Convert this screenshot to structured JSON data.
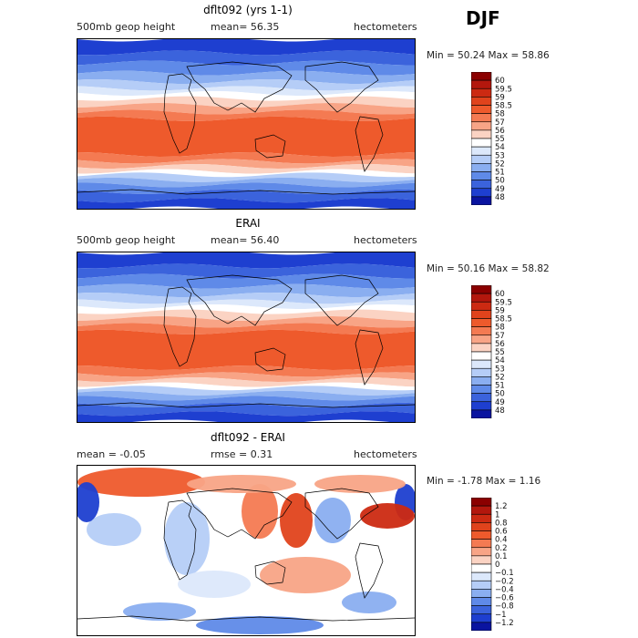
{
  "season": "DJF",
  "panels": [
    {
      "title": "dflt092 (yrs 1-1)",
      "left_label": "500mb geop height",
      "mid_label": "mean=  56.35",
      "right_label": "hectometers",
      "minmax": "Min =  50.24 Max =  58.86",
      "field": "height",
      "colorbar": {
        "labels": [
          "60",
          "59.5",
          "59",
          "58.5",
          "58",
          "57",
          "56",
          "55",
          "54",
          "53",
          "52",
          "51",
          "50",
          "49",
          "48"
        ],
        "colors": [
          "#8b0000",
          "#b3170d",
          "#cc2a12",
          "#e0431c",
          "#ee5a2c",
          "#f47a52",
          "#f8a486",
          "#fbd3c3",
          "#ffffff",
          "#dce8fb",
          "#b5cdf7",
          "#8aaef0",
          "#5f8ae8",
          "#3b63dc",
          "#1e3fd0",
          "#0a14a0"
        ]
      }
    },
    {
      "title": "ERAI",
      "left_label": "500mb geop height",
      "mid_label": "mean=  56.40",
      "right_label": "hectometers",
      "minmax": "Min =  50.16 Max =  58.82",
      "field": "height",
      "colorbar": {
        "labels": [
          "60",
          "59.5",
          "59",
          "58.5",
          "58",
          "57",
          "56",
          "55",
          "54",
          "53",
          "52",
          "51",
          "50",
          "49",
          "48"
        ],
        "colors": [
          "#8b0000",
          "#b3170d",
          "#cc2a12",
          "#e0431c",
          "#ee5a2c",
          "#f47a52",
          "#f8a486",
          "#fbd3c3",
          "#ffffff",
          "#dce8fb",
          "#b5cdf7",
          "#8aaef0",
          "#5f8ae8",
          "#3b63dc",
          "#1e3fd0",
          "#0a14a0"
        ]
      }
    },
    {
      "title": "dflt092 - ERAI",
      "left_label": "mean =  -0.05",
      "mid_label": "rmse =   0.31",
      "right_label": "hectometers",
      "minmax": "Min =  -1.78 Max =   1.16",
      "field": "diff",
      "colorbar": {
        "labels": [
          "1.2",
          "1",
          "0.8",
          "0.6",
          "0.4",
          "0.2",
          "0.1",
          "0",
          "-0.1",
          "-0.2",
          "-0.4",
          "-0.6",
          "-0.8",
          "-1",
          "-1.2"
        ],
        "colors": [
          "#8b0000",
          "#b3170d",
          "#cc2a12",
          "#e0431c",
          "#ee5a2c",
          "#f47a52",
          "#f8a486",
          "#fbd3c3",
          "#ffffff",
          "#dce8fb",
          "#b5cdf7",
          "#8aaef0",
          "#5f8ae8",
          "#3b63dc",
          "#1e3fd0",
          "#0a14a0"
        ]
      }
    }
  ]
}
